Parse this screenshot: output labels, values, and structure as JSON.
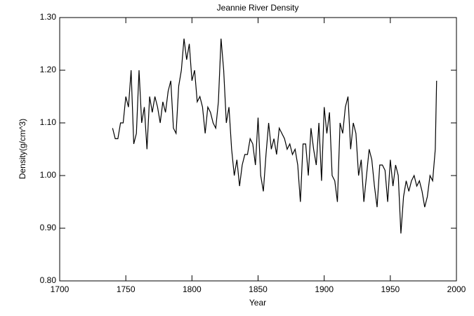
{
  "chart_data": {
    "type": "line",
    "title": "Jeannie River Density",
    "xlabel": "Year",
    "ylabel": "Density(g/cm^3)",
    "x": [
      1740,
      1742,
      1744,
      1746,
      1748,
      1750,
      1752,
      1754,
      1756,
      1758,
      1760,
      1762,
      1764,
      1766,
      1768,
      1770,
      1772,
      1774,
      1776,
      1778,
      1780,
      1782,
      1784,
      1786,
      1788,
      1790,
      1792,
      1794,
      1796,
      1798,
      1800,
      1802,
      1804,
      1806,
      1808,
      1810,
      1812,
      1814,
      1816,
      1818,
      1820,
      1822,
      1824,
      1826,
      1828,
      1830,
      1832,
      1834,
      1836,
      1838,
      1840,
      1842,
      1844,
      1846,
      1848,
      1850,
      1852,
      1854,
      1856,
      1858,
      1860,
      1862,
      1864,
      1866,
      1868,
      1870,
      1872,
      1874,
      1876,
      1878,
      1880,
      1882,
      1884,
      1886,
      1888,
      1890,
      1892,
      1894,
      1896,
      1898,
      1900,
      1902,
      1904,
      1906,
      1908,
      1910,
      1912,
      1914,
      1916,
      1918,
      1920,
      1922,
      1924,
      1926,
      1928,
      1930,
      1932,
      1934,
      1936,
      1938,
      1940,
      1942,
      1944,
      1946,
      1948,
      1950,
      1952,
      1954,
      1956,
      1958,
      1960,
      1962,
      1964,
      1966,
      1968,
      1970,
      1972,
      1974,
      1976,
      1978,
      1980,
      1982,
      1984,
      1985
    ],
    "series": [
      {
        "name": "Density",
        "color": "#000000",
        "values": [
          1.09,
          1.07,
          1.07,
          1.1,
          1.1,
          1.15,
          1.13,
          1.2,
          1.06,
          1.08,
          1.2,
          1.1,
          1.13,
          1.05,
          1.15,
          1.12,
          1.15,
          1.13,
          1.1,
          1.14,
          1.12,
          1.16,
          1.18,
          1.09,
          1.08,
          1.17,
          1.2,
          1.26,
          1.22,
          1.25,
          1.18,
          1.2,
          1.14,
          1.15,
          1.13,
          1.08,
          1.13,
          1.12,
          1.1,
          1.09,
          1.14,
          1.26,
          1.2,
          1.1,
          1.13,
          1.05,
          1.0,
          1.03,
          0.98,
          1.02,
          1.04,
          1.04,
          1.07,
          1.06,
          1.02,
          1.11,
          1.0,
          0.97,
          1.04,
          1.1,
          1.05,
          1.07,
          1.04,
          1.09,
          1.08,
          1.07,
          1.05,
          1.06,
          1.04,
          1.05,
          1.02,
          0.95,
          1.06,
          1.06,
          1.0,
          1.09,
          1.05,
          1.02,
          1.1,
          0.99,
          1.13,
          1.08,
          1.12,
          1.0,
          0.99,
          0.95,
          1.1,
          1.08,
          1.13,
          1.15,
          1.05,
          1.1,
          1.08,
          1.0,
          1.03,
          0.95,
          1.0,
          1.05,
          1.03,
          0.98,
          0.94,
          1.02,
          1.02,
          1.01,
          0.95,
          1.03,
          0.98,
          1.02,
          1.0,
          0.89,
          0.96,
          0.99,
          0.97,
          0.99,
          1.0,
          0.98,
          0.99,
          0.97,
          0.94,
          0.96,
          1.0,
          0.99,
          1.05,
          1.18
        ]
      }
    ],
    "xlim": [
      1700,
      2000
    ],
    "xticks": [
      1700,
      1750,
      1800,
      1850,
      1900,
      1950,
      2000
    ],
    "ylim": [
      0.8,
      1.3
    ],
    "yticks": [
      {
        "value": 0.8,
        "label": "0.80"
      },
      {
        "value": 0.9,
        "label": "0.90"
      },
      {
        "value": 1.0,
        "label": "1.00"
      },
      {
        "value": 1.1,
        "label": "1.10"
      },
      {
        "value": 1.2,
        "label": "1.20"
      },
      {
        "value": 1.3,
        "label": "1.30"
      }
    ]
  }
}
